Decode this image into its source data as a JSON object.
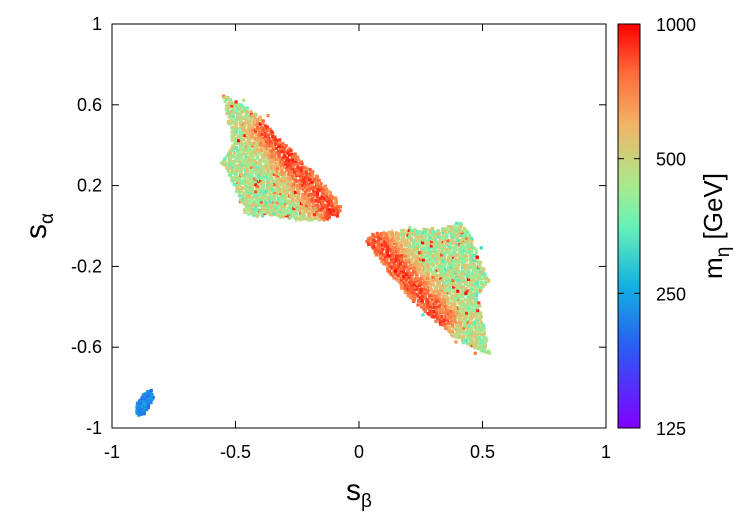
{
  "chart_data": {
    "type": "scatter",
    "title": "",
    "x_range": [
      -1,
      1
    ],
    "y_range": [
      -1,
      1
    ],
    "x_ticks": [
      -1,
      -0.5,
      0,
      0.5,
      1
    ],
    "x_tick_labels": [
      "-1",
      "-0.5",
      "0",
      "0.5",
      "1"
    ],
    "y_ticks": [
      1,
      0.6,
      0.2,
      -0.2,
      -0.6,
      -1
    ],
    "y_tick_labels": [
      "1",
      "0.6",
      "0.2",
      "-0.2",
      "-0.6",
      "-1"
    ],
    "xlabel_main": "s",
    "xlabel_sub": "β",
    "ylabel_main": "s",
    "ylabel_sub": "α",
    "grid": false,
    "colorbar": {
      "label_main": "m",
      "label_sub": "η",
      "label_unit": " [GeV]",
      "range": [
        125,
        1000
      ],
      "scale": "log",
      "ticks": [
        1000,
        500,
        250,
        125
      ],
      "tick_labels": [
        "1000",
        "500",
        "250",
        "125"
      ],
      "palette": "rainbow"
    },
    "clusters": [
      {
        "name": "upper-left",
        "region": [
          [
            -0.55,
            0.65
          ],
          [
            -0.47,
            0.6
          ],
          [
            -0.4,
            0.54
          ],
          [
            -0.34,
            0.45
          ],
          [
            -0.26,
            0.36
          ],
          [
            -0.17,
            0.25
          ],
          [
            -0.07,
            0.1
          ],
          [
            -0.08,
            0.05
          ],
          [
            -0.14,
            0.03
          ],
          [
            -0.25,
            0.03
          ],
          [
            -0.36,
            0.05
          ],
          [
            -0.46,
            0.05
          ],
          [
            -0.49,
            0.15
          ],
          [
            -0.52,
            0.24
          ],
          [
            -0.56,
            0.31
          ],
          [
            -0.51,
            0.4
          ],
          [
            -0.53,
            0.52
          ]
        ],
        "high_mass_band": {
          "p1": [
            -0.37,
            0.48
          ],
          "p2": [
            -0.09,
            0.04
          ],
          "width": 0.07
        },
        "mass_range": [
          300,
          1000
        ]
      },
      {
        "name": "lower-right",
        "region": [
          [
            0.04,
            -0.04
          ],
          [
            0.18,
            -0.02
          ],
          [
            0.34,
            -0.01
          ],
          [
            0.41,
            0.02
          ],
          [
            0.46,
            -0.06
          ],
          [
            0.49,
            -0.17
          ],
          [
            0.53,
            -0.27
          ],
          [
            0.48,
            -0.34
          ],
          [
            0.5,
            -0.46
          ],
          [
            0.53,
            -0.64
          ],
          [
            0.45,
            -0.6
          ],
          [
            0.38,
            -0.55
          ],
          [
            0.3,
            -0.46
          ],
          [
            0.2,
            -0.35
          ],
          [
            0.12,
            -0.23
          ],
          [
            0.03,
            -0.08
          ]
        ],
        "high_mass_band": {
          "p1": [
            0.07,
            -0.07
          ],
          "p2": [
            0.33,
            -0.46
          ],
          "width": 0.07
        },
        "mass_range": [
          300,
          1000
        ]
      },
      {
        "name": "bottom-left",
        "region": [
          [
            -0.9,
            -0.88
          ],
          [
            -0.87,
            -0.83
          ],
          [
            -0.84,
            -0.81
          ],
          [
            -0.83,
            -0.86
          ],
          [
            -0.87,
            -0.93
          ],
          [
            -0.9,
            -0.94
          ]
        ],
        "mass_range": [
          195,
          260
        ]
      }
    ]
  }
}
